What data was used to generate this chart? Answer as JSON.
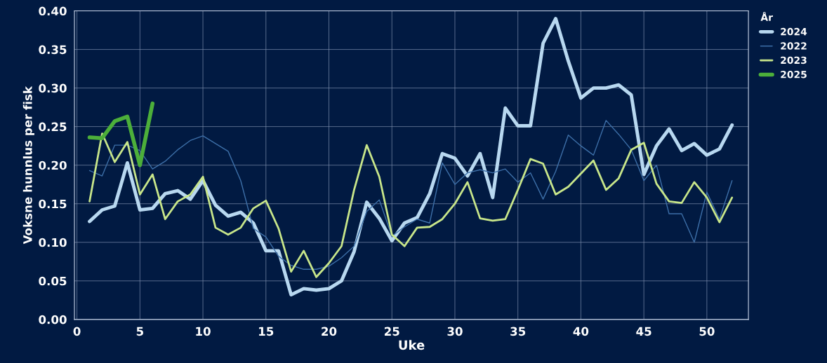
{
  "chart_data": {
    "type": "line",
    "xlabel": "Uke",
    "ylabel": "Voksne hunnlus per fisk",
    "legend_title": "År",
    "legend": "top right",
    "grid": true,
    "marker": "none",
    "line_style": "solid",
    "xlim": [
      -0.2,
      53.3
    ],
    "xticks": [
      0,
      5,
      10,
      15,
      20,
      25,
      30,
      35,
      40,
      45,
      50
    ],
    "ylim": [
      0,
      0.4
    ],
    "yticks": [
      {
        "value": 0,
        "label": "0.00"
      },
      {
        "value": 0.05,
        "label": "0.05"
      },
      {
        "value": 0.1,
        "label": "0.10"
      },
      {
        "value": 0.15,
        "label": "0.15"
      },
      {
        "value": 0.2,
        "label": "0.20"
      },
      {
        "value": 0.25,
        "label": "0.25"
      },
      {
        "value": 0.3,
        "label": "0.30"
      },
      {
        "value": 0.35,
        "label": "0.35"
      },
      {
        "value": 0.4,
        "label": "0.40"
      }
    ],
    "x": [
      1,
      2,
      3,
      4,
      5,
      6,
      7,
      8,
      9,
      10,
      11,
      12,
      13,
      14,
      15,
      16,
      17,
      18,
      19,
      20,
      21,
      22,
      23,
      24,
      25,
      26,
      27,
      28,
      29,
      30,
      31,
      32,
      33,
      34,
      35,
      36,
      37,
      38,
      39,
      40,
      41,
      42,
      43,
      44,
      45,
      46,
      47,
      48,
      49,
      50,
      51,
      52
    ],
    "series": [
      {
        "name": "2024",
        "color": "#b8d8f0",
        "values": [
          0.127,
          0.142,
          0.147,
          0.203,
          0.142,
          0.144,
          0.163,
          0.167,
          0.156,
          0.18,
          0.148,
          0.134,
          0.139,
          0.125,
          0.089,
          0.089,
          0.032,
          0.04,
          0.038,
          0.04,
          0.05,
          0.088,
          0.152,
          0.131,
          0.102,
          0.125,
          0.132,
          0.163,
          0.215,
          0.209,
          0.186,
          0.215,
          0.158,
          0.274,
          0.251,
          0.251,
          0.358,
          0.39,
          0.335,
          0.287,
          0.3,
          0.3,
          0.304,
          0.291,
          0.188,
          0.225,
          0.247,
          0.219,
          0.228,
          0.213,
          0.221,
          0.252
        ]
      },
      {
        "name": "2022",
        "color": "#3d6fa8",
        "values": [
          0.193,
          0.186,
          0.226,
          0.226,
          0.219,
          0.195,
          0.205,
          0.22,
          0.232,
          0.238,
          0.228,
          0.218,
          0.18,
          0.118,
          0.107,
          0.082,
          0.07,
          0.065,
          0.065,
          0.069,
          0.08,
          0.095,
          0.14,
          0.155,
          0.108,
          0.12,
          0.13,
          0.125,
          0.203,
          0.175,
          0.19,
          0.194,
          0.19,
          0.195,
          0.178,
          0.19,
          0.156,
          0.192,
          0.239,
          0.225,
          0.213,
          0.258,
          0.24,
          0.22,
          0.18,
          0.2,
          0.137,
          0.137,
          0.1,
          0.165,
          0.13,
          0.18
        ]
      },
      {
        "name": "2023",
        "color": "#c8e68a",
        "values": [
          0.153,
          0.241,
          0.204,
          0.23,
          0.162,
          0.188,
          0.13,
          0.153,
          0.162,
          0.185,
          0.119,
          0.11,
          0.119,
          0.144,
          0.154,
          0.118,
          0.062,
          0.089,
          0.055,
          0.073,
          0.095,
          0.168,
          0.226,
          0.185,
          0.11,
          0.095,
          0.119,
          0.12,
          0.13,
          0.15,
          0.178,
          0.131,
          0.128,
          0.13,
          0.168,
          0.208,
          0.202,
          0.162,
          0.172,
          0.189,
          0.206,
          0.168,
          0.183,
          0.22,
          0.229,
          0.176,
          0.153,
          0.151,
          0.178,
          0.158,
          0.126,
          0.158
        ]
      },
      {
        "name": "2025",
        "color": "#4caf3a",
        "x": [
          1,
          2,
          3,
          4,
          5,
          6
        ],
        "values": [
          0.236,
          0.235,
          0.257,
          0.263,
          0.2,
          0.28
        ]
      }
    ]
  }
}
